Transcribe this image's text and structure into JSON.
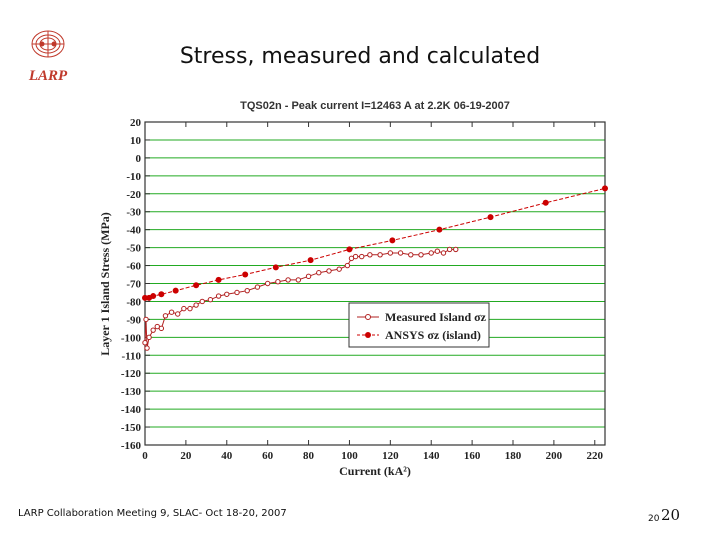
{
  "slide": {
    "title": "Stress, measured and calculated",
    "logo_text": "LARP",
    "footer_left": "LARP Collaboration Meeting 9,  SLAC- Oct 18-20, 2007",
    "page_number_small": "20",
    "page_number": "20"
  },
  "chart_data": {
    "type": "scatter",
    "title": "TQS02n - Peak current I=12463 A at 2.2K 06-19-2007",
    "xlabel": "Current (kA²)",
    "ylabel": "Layer 1 Island Stress (MPa)",
    "xlim": [
      0,
      225
    ],
    "ylim": [
      -160,
      20
    ],
    "x_ticks": [
      0,
      20,
      40,
      60,
      80,
      100,
      120,
      140,
      160,
      180,
      200,
      220
    ],
    "y_ticks": [
      20,
      10,
      0,
      -10,
      -20,
      -30,
      -40,
      -50,
      -60,
      -70,
      -80,
      -90,
      -100,
      -110,
      -120,
      -130,
      -140,
      -150,
      -160
    ],
    "grid": "horizontal",
    "legend_position": "bottom-right",
    "series": [
      {
        "name": "Measured Island σz",
        "color": "#b22222",
        "marker": "open-circle",
        "x": [
          0,
          0.5,
          1,
          2,
          4,
          6,
          8,
          10,
          13,
          16,
          19,
          22,
          25,
          28,
          32,
          36,
          40,
          45,
          50,
          55,
          60,
          65,
          70,
          75,
          80,
          85,
          90,
          95,
          99,
          101,
          103,
          106,
          110,
          115,
          120,
          125,
          130,
          135,
          140,
          143,
          146,
          149,
          152
        ],
        "y": [
          -103,
          -90,
          -106,
          -100,
          -96,
          -94,
          -95,
          -88,
          -86,
          -87,
          -84,
          -84,
          -82,
          -80,
          -79,
          -77,
          -76,
          -75,
          -74,
          -72,
          -70,
          -69,
          -68,
          -68,
          -66,
          -64,
          -63,
          -62,
          -60,
          -56,
          -55,
          -55,
          -54,
          -54,
          -53,
          -53,
          -54,
          -54,
          -53,
          -52,
          -53,
          -51,
          -51
        ]
      },
      {
        "name": "ANSYS σz (island)",
        "color": "#cc0000",
        "marker": "filled-circle",
        "x": [
          0,
          2,
          4,
          8,
          15,
          25,
          36,
          49,
          64,
          81,
          100,
          121,
          144,
          169,
          196,
          225
        ],
        "y": [
          -78,
          -78,
          -77,
          -76,
          -74,
          -71,
          -68,
          -65,
          -61,
          -57,
          -51,
          -46,
          -40,
          -33,
          -25,
          -17
        ]
      }
    ]
  }
}
